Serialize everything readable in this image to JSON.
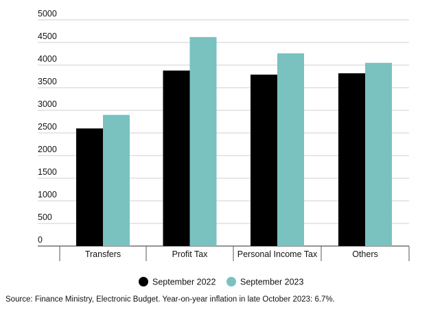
{
  "chart_data": {
    "type": "bar",
    "categories": [
      "Transfers",
      "Profit Tax",
      "Personal Income Tax",
      "Others"
    ],
    "series": [
      {
        "name": "September 2022",
        "values": [
          2600,
          3880,
          3790,
          3820
        ],
        "color": "#000000"
      },
      {
        "name": "September 2023",
        "values": [
          2900,
          4620,
          4260,
          4050
        ],
        "color": "#79c2c0"
      }
    ],
    "ylim": [
      0,
      5000
    ],
    "yticks": [
      "0",
      "500",
      "1000",
      "1500",
      "2000",
      "2500",
      "3000",
      "3500",
      "4000",
      "4500",
      "5000"
    ],
    "grid": true,
    "legend": "bottom"
  },
  "source": "Source: Finance Ministry, Electronic Budget. Year-on-year inflation in late October 2023: 6.7%."
}
